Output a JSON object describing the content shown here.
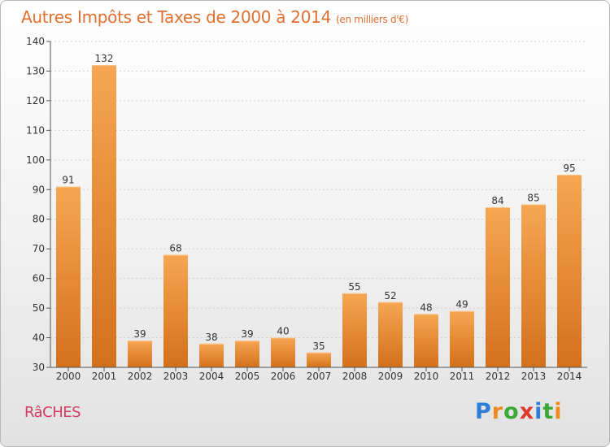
{
  "header": {
    "title": "Autres Impôts et Taxes de 2000 à 2014",
    "unit": "(en milliers d'€)"
  },
  "footer": {
    "commune": "RâCHES",
    "brand_letters": [
      "P",
      "r",
      "o",
      "x",
      "i",
      "t",
      "i"
    ],
    "brand_colors": [
      "#2e7dd7",
      "#ef8a1e",
      "#3aa935",
      "#e03a2f",
      "#2e7dd7",
      "#3aa935",
      "#ef8a1e"
    ]
  },
  "colors": {
    "bar_light": "#f6a652",
    "bar_dark": "#d4701c",
    "axis": "#555555",
    "grid": "#cfcfcf"
  },
  "chart_data": {
    "type": "bar",
    "title": "Autres Impôts et Taxes de 2000 à 2014",
    "subtitle": "(en milliers d'€)",
    "xlabel": "",
    "ylabel": "",
    "categories": [
      "2000",
      "2001",
      "2002",
      "2003",
      "2004",
      "2005",
      "2006",
      "2007",
      "2008",
      "2009",
      "2010",
      "2011",
      "2012",
      "2013",
      "2014"
    ],
    "values": [
      91,
      132,
      39,
      68,
      38,
      39,
      40,
      35,
      55,
      52,
      48,
      49,
      84,
      85,
      95
    ],
    "ylim": [
      30,
      140
    ],
    "yticks": [
      30,
      40,
      50,
      60,
      70,
      80,
      90,
      100,
      110,
      120,
      130,
      140
    ],
    "grid": true,
    "legend": "none"
  }
}
